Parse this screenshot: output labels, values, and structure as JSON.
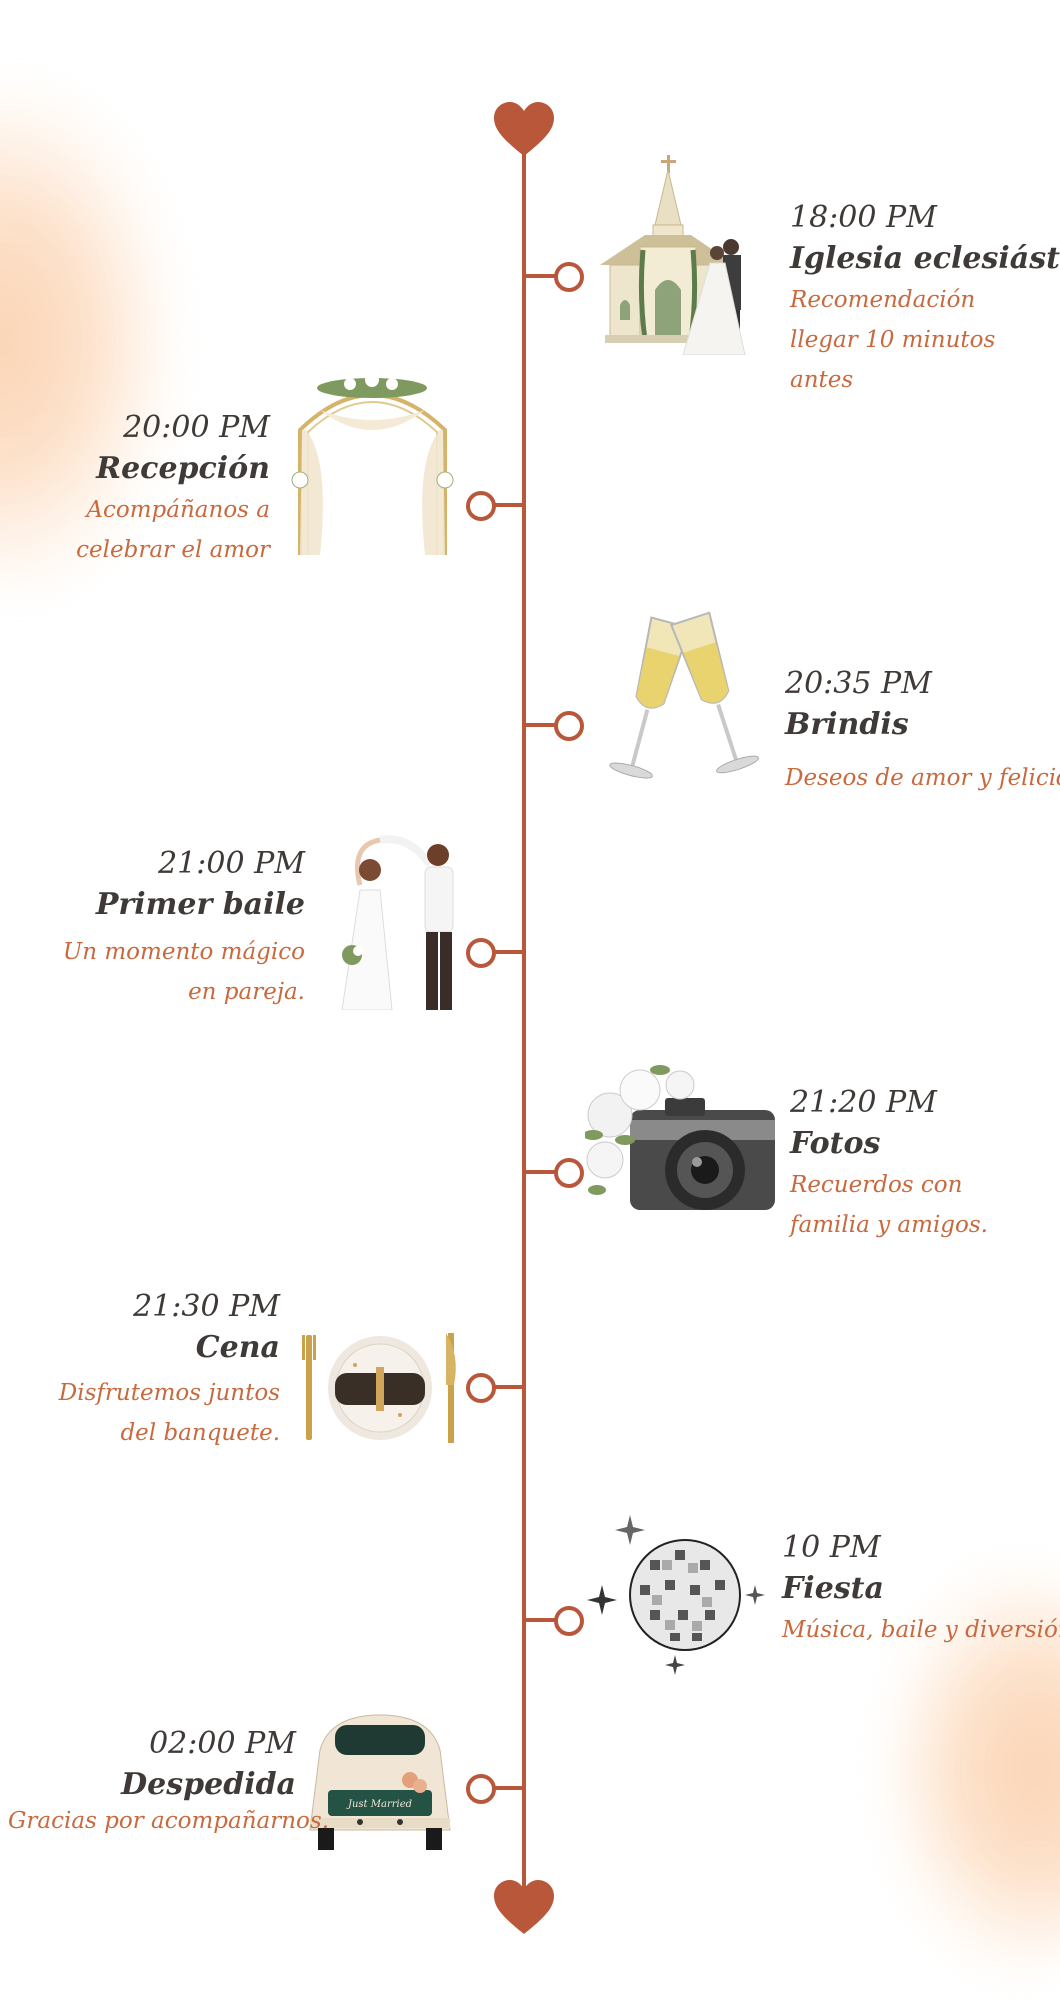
{
  "colors": {
    "accent": "#b9573b",
    "heading": "#3f3a37",
    "description": "#c8693e",
    "watercolor": "#f9b27a"
  },
  "events": [
    {
      "time": "18:00 PM",
      "title": "Iglesia eclesiástica",
      "description": "Recomendación llegar 10 minutos antes",
      "icon": "church-couple-icon"
    },
    {
      "time": "20:00 PM",
      "title": "Recepción",
      "description": "Acompáñanos a celebrar el amor",
      "icon": "floral-arch-icon"
    },
    {
      "time": "20:35 PM",
      "title": "Brindis",
      "description": "Deseos de amor y felicidad.",
      "icon": "champagne-glasses-icon"
    },
    {
      "time": "21:00 PM",
      "title": "Primer baile",
      "description": "Un momento mágico en pareja.",
      "icon": "dancing-couple-icon"
    },
    {
      "time": "21:20 PM",
      "title": "Fotos",
      "description": "Recuerdos con familia y amigos.",
      "icon": "camera-flowers-icon"
    },
    {
      "time": "21:30 PM",
      "title": "Cena",
      "description": "Disfrutemos juntos del banquete.",
      "icon": "dinner-plate-icon"
    },
    {
      "time": "10 PM",
      "title": "Fiesta",
      "description": "Música, baile y diversión.",
      "icon": "disco-ball-icon"
    },
    {
      "time": "02:00 PM",
      "title": "Despedida",
      "description": "Gracias por acompañarnos.",
      "icon": "just-married-car-icon"
    }
  ]
}
